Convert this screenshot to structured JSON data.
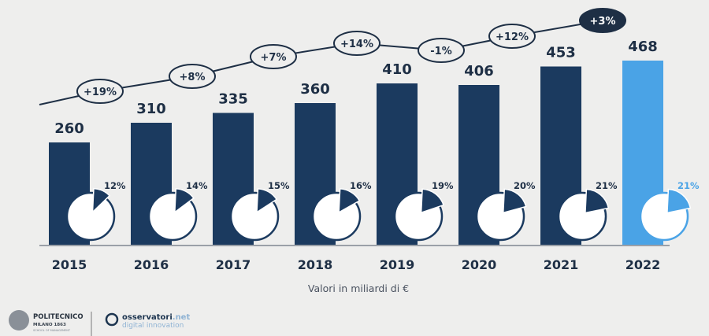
{
  "chart_data": {
    "type": "bar",
    "categories": [
      "2015",
      "2016",
      "2017",
      "2018",
      "2019",
      "2020",
      "2021",
      "2022"
    ],
    "values": [
      260,
      310,
      335,
      360,
      410,
      406,
      453,
      468
    ],
    "value_labels": [
      "260",
      "310",
      "335",
      "360",
      "410",
      "406",
      "453",
      "468"
    ],
    "share_percent": [
      12,
      14,
      15,
      16,
      19,
      20,
      21,
      21
    ],
    "share_labels": [
      "12%",
      "14%",
      "15%",
      "16%",
      "19%",
      "20%",
      "21%",
      "21%"
    ],
    "growth_labels": [
      "+19%",
      "+8%",
      "+7%",
      "+14%",
      "-1%",
      "+12%",
      "+3%"
    ],
    "xlabel": "Valori in miliardi di €",
    "colors": {
      "bar": "#1b3a5f",
      "highlight": "#4aa3e6",
      "background": "#eeeeed"
    },
    "highlighted_category": "2022"
  },
  "footer": {
    "logo1": {
      "name": "POLITECNICO",
      "sub": "MILANO 1863",
      "sub2": "SCHOOL OF MANAGEMENT"
    },
    "logo2": {
      "name": "osservatori",
      "suffix": ".net",
      "sub": "digital innovation"
    }
  }
}
